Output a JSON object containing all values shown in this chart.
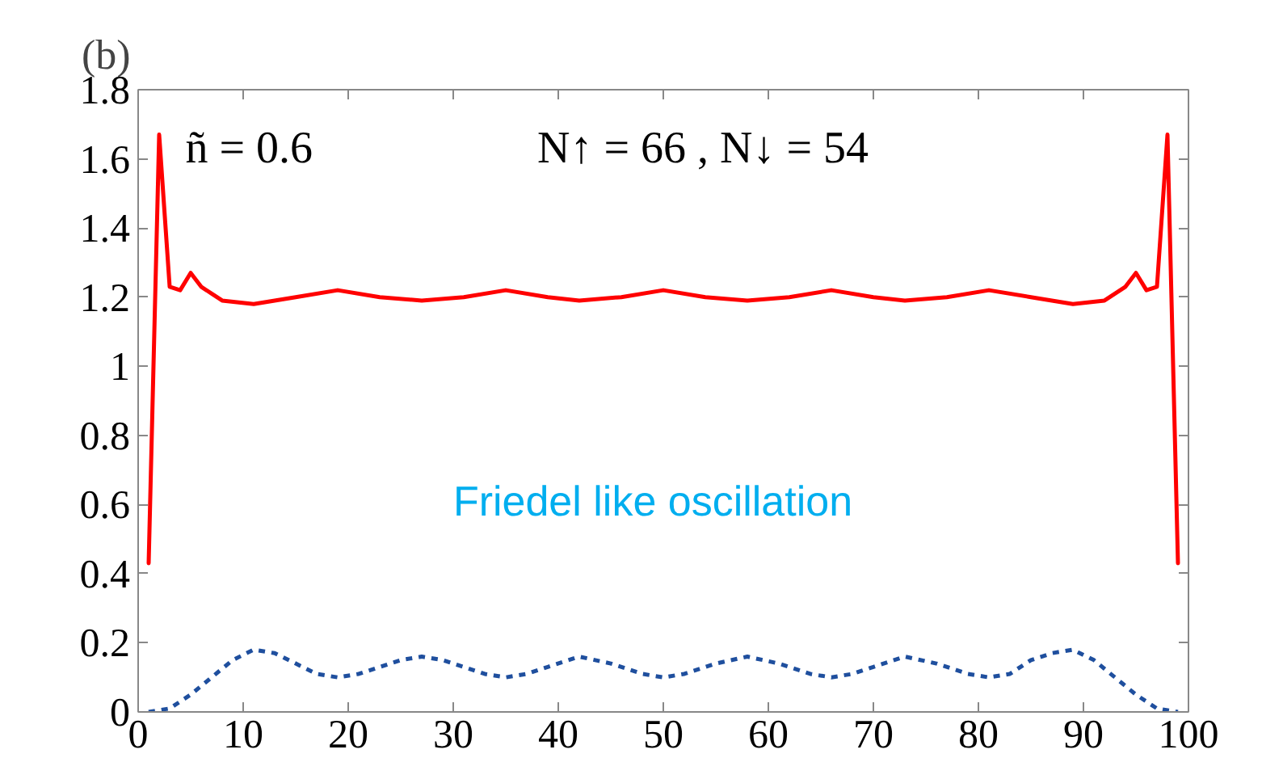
{
  "chart_data": {
    "type": "line",
    "title": "(b)",
    "annotations": [
      "ñ = 0.6",
      "N↑ = 66 ,  N↓ = 54",
      "Friedel like oscillation"
    ],
    "xlim": [
      0,
      100
    ],
    "xticks": [
      0,
      10,
      20,
      30,
      40,
      50,
      60,
      70,
      80,
      90,
      100
    ],
    "ylim": [
      0,
      1.8
    ],
    "yticks": [
      0,
      {
        "value": 0.2,
        "label": "0.2"
      },
      {
        "value": 0.4,
        "label": "0.4"
      },
      {
        "value": 0.6,
        "label": "0.6"
      },
      {
        "value": 0.8,
        "label": "0.8"
      },
      1,
      {
        "value": 1.2,
        "label": "1.2"
      },
      {
        "value": 1.4,
        "label": "1.4"
      },
      {
        "value": 1.6,
        "label": "1.6"
      },
      {
        "value": 1.8,
        "label": "1.8"
      }
    ],
    "grid": false,
    "marker": "none",
    "series": [
      {
        "color": "#ff0000",
        "line_style": "solid",
        "x": [
          1,
          2,
          3,
          4,
          5,
          6,
          7,
          8,
          11,
          15,
          19,
          23,
          27,
          31,
          35,
          39,
          42,
          46,
          50,
          54,
          58,
          62,
          66,
          70,
          73,
          77,
          81,
          85,
          89,
          92,
          93,
          94,
          95,
          96,
          97,
          98,
          99
        ],
        "values": [
          0.43,
          1.67,
          1.23,
          1.22,
          1.27,
          1.23,
          1.21,
          1.19,
          1.18,
          1.2,
          1.22,
          1.2,
          1.19,
          1.2,
          1.22,
          1.2,
          1.19,
          1.2,
          1.22,
          1.2,
          1.19,
          1.2,
          1.22,
          1.2,
          1.19,
          1.2,
          1.22,
          1.2,
          1.18,
          1.19,
          1.21,
          1.23,
          1.27,
          1.22,
          1.23,
          1.67,
          0.43
        ]
      },
      {
        "color": "#1f4f9e",
        "line_style": "dotted",
        "x": [
          1,
          3,
          5,
          7,
          9,
          11,
          13,
          15,
          17,
          19,
          21,
          23,
          25,
          27,
          29,
          31,
          33,
          35,
          37,
          39,
          42,
          45,
          48,
          50,
          52,
          55,
          58,
          61,
          64,
          66,
          68,
          70,
          73,
          76,
          79,
          81,
          83,
          85,
          87,
          89,
          91,
          93,
          95,
          97,
          99
        ],
        "values": [
          0,
          0.01,
          0.05,
          0.1,
          0.15,
          0.18,
          0.17,
          0.14,
          0.11,
          0.1,
          0.11,
          0.13,
          0.15,
          0.16,
          0.15,
          0.13,
          0.11,
          0.1,
          0.11,
          0.13,
          0.16,
          0.14,
          0.11,
          0.1,
          0.11,
          0.14,
          0.16,
          0.14,
          0.11,
          0.1,
          0.11,
          0.13,
          0.16,
          0.14,
          0.11,
          0.1,
          0.11,
          0.15,
          0.17,
          0.18,
          0.15,
          0.1,
          0.05,
          0.01,
          0
        ]
      }
    ]
  }
}
